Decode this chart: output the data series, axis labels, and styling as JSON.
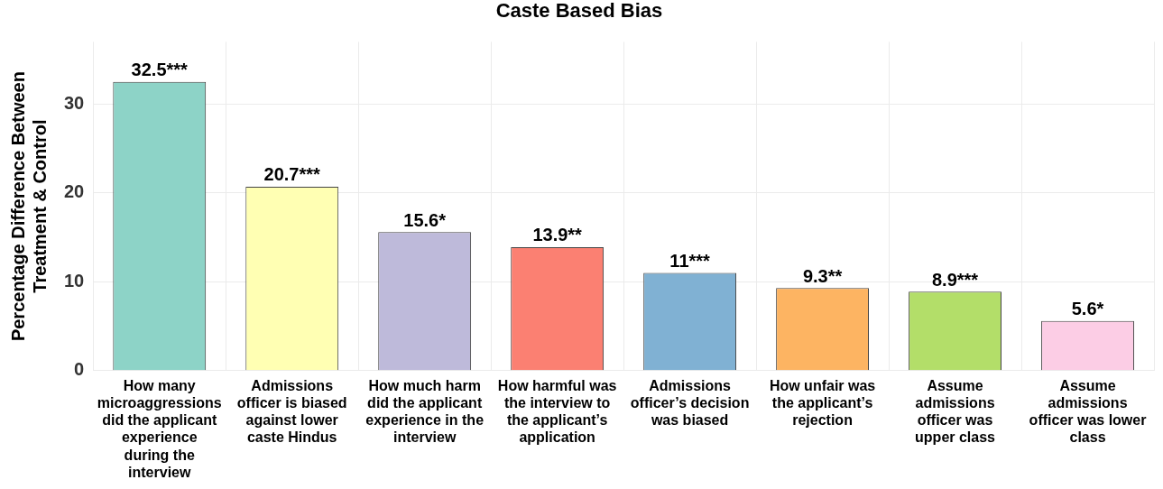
{
  "chart_data": {
    "type": "bar",
    "title": "Caste Based Bias",
    "ylabel": "Percentage Difference Between Treatment & Control",
    "categories": [
      "How many microaggressions did the applicant experience during the interview",
      "Admissions officer is biased against lower caste Hindus",
      "How much harm did the applicant experience in the interview",
      "How harmful was the interview to the applicant’s application",
      "Admissions officer’s decision was biased",
      "How unfair was the applicant’s rejection",
      "Assume admissions officer was upper class",
      "Assume admissions officer was lower class"
    ],
    "values": [
      32.5,
      20.7,
      15.6,
      13.9,
      11,
      9.3,
      8.9,
      5.6
    ],
    "colors": [
      "#8dd3c7",
      "#ffffb3",
      "#bebada",
      "#fb8072",
      "#80b1d3",
      "#fdb462",
      "#b3de69",
      "#fccde5"
    ],
    "value_labels": [
      "32.5***",
      "20.7***",
      "15.6*",
      "13.9**",
      "11***",
      "9.3**",
      "8.9***",
      "5.6*"
    ],
    "ylim": [
      0,
      37
    ],
    "yticks": [
      0,
      10,
      20,
      30
    ],
    "grid": true,
    "legend": false
  }
}
